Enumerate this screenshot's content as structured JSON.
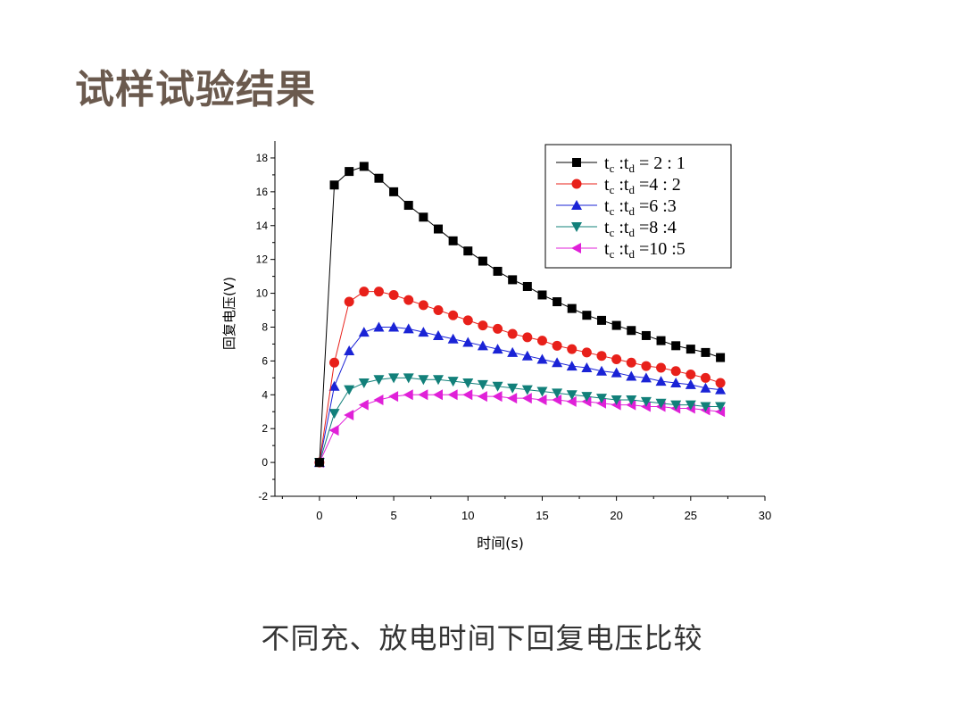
{
  "page": {
    "title": "试样试验结果",
    "caption": "不同充、放电时间下回复电压比较"
  },
  "chart_data": {
    "type": "line",
    "title": "",
    "xlabel": "时间(s)",
    "ylabel": "回复电压(V)",
    "xlim": [
      -3,
      30
    ],
    "ylim": [
      -2,
      19
    ],
    "xticks": [
      0,
      5,
      10,
      15,
      20,
      25,
      30
    ],
    "yticks": [
      -2,
      0,
      2,
      4,
      6,
      8,
      10,
      12,
      14,
      16,
      18
    ],
    "grid": false,
    "legend_position": "top-right",
    "x": [
      0,
      1,
      2,
      3,
      4,
      5,
      6,
      7,
      8,
      9,
      10,
      11,
      12,
      13,
      14,
      15,
      16,
      17,
      18,
      19,
      20,
      21,
      22,
      23,
      24,
      25,
      26,
      27
    ],
    "series": [
      {
        "name": "t_c : t_d = 2 : 1",
        "legend": {
          "pre": "t",
          "sub1": "c",
          "mid": " :t",
          "sub2": "d",
          "post": " = 2 : 1"
        },
        "color": "#000000",
        "marker": "square",
        "values": [
          0,
          16.4,
          17.2,
          17.5,
          16.8,
          16.0,
          15.2,
          14.5,
          13.8,
          13.1,
          12.5,
          11.9,
          11.3,
          10.8,
          10.4,
          9.9,
          9.5,
          9.1,
          8.7,
          8.4,
          8.1,
          7.8,
          7.5,
          7.2,
          6.9,
          6.7,
          6.5,
          6.2
        ]
      },
      {
        "name": "t_c : t_d = 4 : 2",
        "legend": {
          "pre": "t",
          "sub1": "c",
          "mid": " :t",
          "sub2": "d",
          "post": " =4 : 2"
        },
        "color": "#e8201a",
        "marker": "circle",
        "values": [
          0,
          5.9,
          9.5,
          10.1,
          10.1,
          9.9,
          9.6,
          9.3,
          9.0,
          8.7,
          8.4,
          8.1,
          7.9,
          7.6,
          7.4,
          7.2,
          6.9,
          6.7,
          6.5,
          6.3,
          6.1,
          5.9,
          5.7,
          5.6,
          5.4,
          5.2,
          5.0,
          4.7
        ]
      },
      {
        "name": "t_c : t_d = 6 : 3",
        "legend": {
          "pre": "t",
          "sub1": "c",
          "mid": " :t",
          "sub2": "d",
          "post": " =6 :3"
        },
        "color": "#1a23d6",
        "marker": "triangle-up",
        "values": [
          0,
          4.5,
          6.6,
          7.7,
          8.0,
          8.0,
          7.9,
          7.7,
          7.5,
          7.3,
          7.1,
          6.9,
          6.7,
          6.5,
          6.3,
          6.1,
          5.9,
          5.7,
          5.6,
          5.4,
          5.3,
          5.1,
          5.0,
          4.8,
          4.7,
          4.6,
          4.4,
          4.3
        ]
      },
      {
        "name": "t_c : t_d = 8 : 4",
        "legend": {
          "pre": "t",
          "sub1": "c",
          "mid": " :t",
          "sub2": "d",
          "post": " =8 :4"
        },
        "color": "#12807a",
        "marker": "triangle-down",
        "values": [
          0,
          2.9,
          4.3,
          4.7,
          4.9,
          5.0,
          5.0,
          4.9,
          4.9,
          4.8,
          4.7,
          4.6,
          4.5,
          4.4,
          4.3,
          4.2,
          4.1,
          4.0,
          3.9,
          3.8,
          3.7,
          3.7,
          3.6,
          3.5,
          3.4,
          3.4,
          3.3,
          3.3
        ]
      },
      {
        "name": "t_c : t_d = 10 : 5",
        "legend": {
          "pre": "t",
          "sub1": "c",
          "mid": " :t",
          "sub2": "d",
          "post": " =10 :5"
        },
        "color": "#e020d8",
        "marker": "triangle-left",
        "values": [
          0,
          1.9,
          2.8,
          3.4,
          3.7,
          3.9,
          4.0,
          4.0,
          4.0,
          4.0,
          4.0,
          3.9,
          3.9,
          3.8,
          3.8,
          3.7,
          3.7,
          3.6,
          3.6,
          3.5,
          3.4,
          3.4,
          3.3,
          3.3,
          3.2,
          3.2,
          3.1,
          3.0
        ]
      }
    ]
  }
}
